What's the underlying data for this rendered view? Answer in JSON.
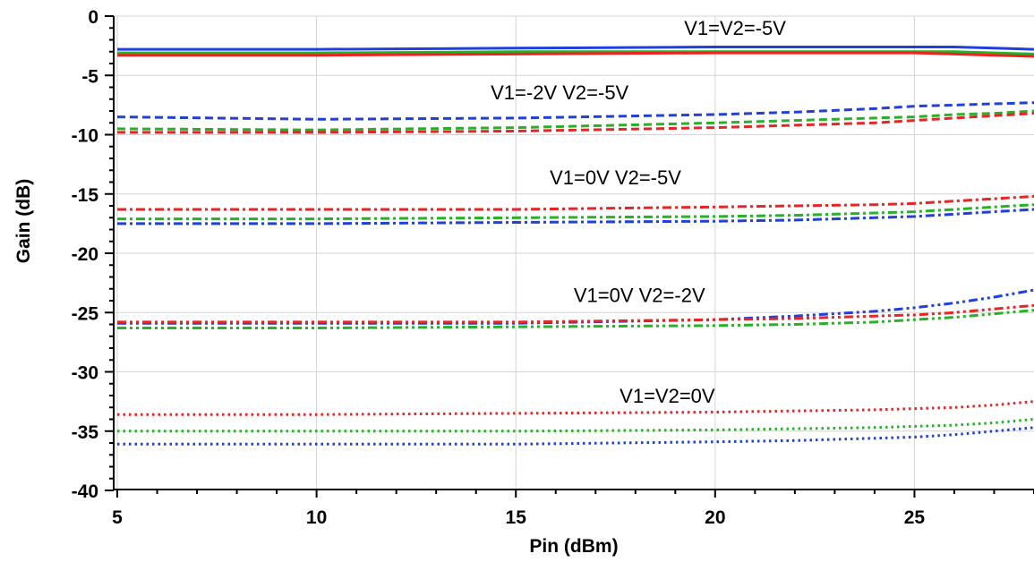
{
  "chart_data": {
    "type": "line",
    "xlabel": "Pin (dBm)",
    "ylabel": "Gain (dB)",
    "xlim": [
      5,
      28
    ],
    "ylim": [
      -40,
      0
    ],
    "x_ticks": [
      5,
      10,
      15,
      20,
      25
    ],
    "y_ticks": [
      0,
      -5,
      -10,
      -15,
      -20,
      -25,
      -30,
      -35,
      -40
    ],
    "grid": true,
    "colors": {
      "blue": "#1f3fe0",
      "green": "#22b422",
      "red": "#ee2222"
    },
    "annotations": [
      {
        "text": "V1=V2=-5V",
        "x": 20.5,
        "y": -1.6
      },
      {
        "text": "V1=-2V V2=-5V",
        "x": 16.1,
        "y": -7.0
      },
      {
        "text": "V1=0V V2=-5V",
        "x": 17.5,
        "y": -14.2
      },
      {
        "text": "V1=0V V2=-2V",
        "x": 18.1,
        "y": -24.1
      },
      {
        "text": "V1=V2=0V",
        "x": 18.8,
        "y": -32.6
      }
    ],
    "x": [
      5,
      10,
      15,
      20,
      22,
      24,
      25,
      26,
      27,
      28
    ],
    "series": [
      {
        "group": "V1=V2=-5V",
        "color": "blue",
        "style": "solid",
        "values": [
          -2.8,
          -2.8,
          -2.7,
          -2.6,
          -2.6,
          -2.6,
          -2.6,
          -2.6,
          -2.7,
          -2.8
        ]
      },
      {
        "group": "V1=V2=-5V",
        "color": "green",
        "style": "solid",
        "values": [
          -3.1,
          -3.1,
          -3.0,
          -3.0,
          -3.0,
          -3.0,
          -3.0,
          -3.0,
          -3.1,
          -3.2
        ]
      },
      {
        "group": "V1=V2=-5V",
        "color": "red",
        "style": "solid",
        "values": [
          -3.3,
          -3.3,
          -3.2,
          -3.1,
          -3.1,
          -3.1,
          -3.1,
          -3.2,
          -3.3,
          -3.4
        ]
      },
      {
        "group": "V1=-2V V2=-5V",
        "color": "blue",
        "style": "dash",
        "values": [
          -8.5,
          -8.7,
          -8.6,
          -8.3,
          -8.1,
          -7.8,
          -7.6,
          -7.5,
          -7.4,
          -7.3
        ]
      },
      {
        "group": "V1=-2V V2=-5V",
        "color": "green",
        "style": "dash",
        "values": [
          -9.5,
          -9.6,
          -9.4,
          -9.0,
          -8.8,
          -8.6,
          -8.5,
          -8.3,
          -8.2,
          -8.0
        ]
      },
      {
        "group": "V1=-2V V2=-5V",
        "color": "red",
        "style": "dash",
        "values": [
          -9.8,
          -9.8,
          -9.7,
          -9.4,
          -9.2,
          -9.0,
          -8.8,
          -8.6,
          -8.4,
          -8.2
        ]
      },
      {
        "group": "V1=0V V2=-5V",
        "color": "red",
        "style": "dashdot",
        "values": [
          -16.3,
          -16.3,
          -16.3,
          -16.1,
          -16.0,
          -15.9,
          -15.8,
          -15.6,
          -15.4,
          -15.2
        ]
      },
      {
        "group": "V1=0V V2=-5V",
        "color": "green",
        "style": "dashdot",
        "values": [
          -17.1,
          -17.1,
          -17.0,
          -16.9,
          -16.8,
          -16.6,
          -16.5,
          -16.3,
          -16.1,
          -15.9
        ]
      },
      {
        "group": "V1=0V V2=-5V",
        "color": "blue",
        "style": "dashdot",
        "values": [
          -17.5,
          -17.5,
          -17.4,
          -17.3,
          -17.2,
          -17.0,
          -16.9,
          -16.7,
          -16.5,
          -16.3
        ]
      },
      {
        "group": "V1=0V V2=-2V",
        "color": "blue",
        "style": "dashdotdot",
        "values": [
          -25.9,
          -25.9,
          -25.9,
          -25.6,
          -25.3,
          -24.9,
          -24.6,
          -24.2,
          -23.7,
          -23.1
        ]
      },
      {
        "group": "V1=0V V2=-2V",
        "color": "red",
        "style": "dashdotdot",
        "values": [
          -25.8,
          -25.8,
          -25.8,
          -25.6,
          -25.5,
          -25.3,
          -25.2,
          -25.0,
          -24.7,
          -24.4
        ]
      },
      {
        "group": "V1=0V V2=-2V",
        "color": "green",
        "style": "dashdotdot",
        "values": [
          -26.3,
          -26.3,
          -26.2,
          -26.1,
          -26.0,
          -25.8,
          -25.6,
          -25.4,
          -25.1,
          -24.8
        ]
      },
      {
        "group": "V1=V2=0V",
        "color": "red",
        "style": "dot",
        "values": [
          -33.6,
          -33.6,
          -33.5,
          -33.4,
          -33.3,
          -33.2,
          -33.1,
          -33.0,
          -32.8,
          -32.5
        ]
      },
      {
        "group": "V1=V2=0V",
        "color": "green",
        "style": "dot",
        "values": [
          -35.0,
          -35.0,
          -35.0,
          -34.9,
          -34.8,
          -34.7,
          -34.6,
          -34.5,
          -34.3,
          -34.0
        ]
      },
      {
        "group": "V1=V2=0V",
        "color": "blue",
        "style": "dot",
        "values": [
          -36.1,
          -36.1,
          -36.1,
          -35.9,
          -35.8,
          -35.6,
          -35.5,
          -35.3,
          -35.0,
          -34.7
        ]
      }
    ]
  }
}
